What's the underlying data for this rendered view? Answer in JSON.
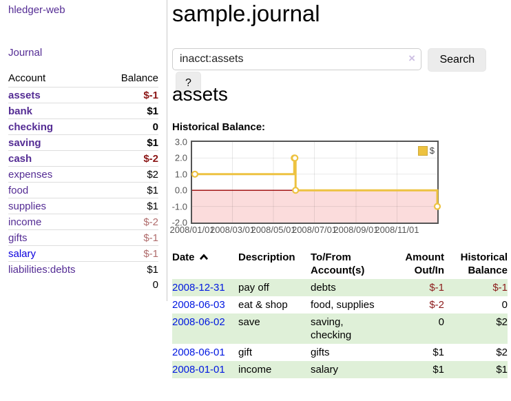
{
  "app": {
    "title": "hledger-web",
    "nav_journal": "Journal"
  },
  "sidebar": {
    "accounts_header": {
      "account": "Account",
      "balance": "Balance"
    },
    "accounts": [
      {
        "name": "assets",
        "balance": "$-1",
        "level": 1,
        "matched": true,
        "negative": true
      },
      {
        "name": "bank",
        "balance": "$1",
        "level": 2,
        "matched": true
      },
      {
        "name": "checking",
        "balance": "0",
        "level": 3,
        "matched": true
      },
      {
        "name": "saving",
        "balance": "$1",
        "level": 3,
        "matched": true
      },
      {
        "name": "cash",
        "balance": "$-2",
        "level": 2,
        "matched": true,
        "negative": true
      },
      {
        "name": "expenses",
        "balance": "$2",
        "level": 1
      },
      {
        "name": "food",
        "balance": "$1",
        "level": 2
      },
      {
        "name": "supplies",
        "balance": "$1",
        "level": 2
      },
      {
        "name": "income",
        "balance": "$-2",
        "level": 1,
        "negative": true
      },
      {
        "name": "gifts",
        "balance": "$-1",
        "level": 2,
        "negative": true
      },
      {
        "name": "salary",
        "balance": "$-1",
        "level": 2,
        "negative": true,
        "blue": true
      },
      {
        "name": "liabilities:debts",
        "balance": "$1",
        "level": 1
      }
    ],
    "total": "0"
  },
  "header": {
    "title": "sample.journal"
  },
  "search": {
    "value": "inacct:assets",
    "clear_icon": "×",
    "button": "Search",
    "help_button": "?"
  },
  "register": {
    "heading": "assets",
    "chart_title": "Historical Balance:"
  },
  "chart_data": {
    "type": "line",
    "step": true,
    "title": "Historical Balance of assets",
    "series": [
      {
        "name": "$",
        "color": "#edc240",
        "points": [
          {
            "x": "2008-01-01",
            "y": 1
          },
          {
            "x": "2008-06-01",
            "y": 2
          },
          {
            "x": "2008-06-02",
            "y": 2
          },
          {
            "x": "2008-06-03",
            "y": 0
          },
          {
            "x": "2008-12-31",
            "y": -1
          }
        ]
      }
    ],
    "x_ticks": [
      "2008/01/01",
      "2008/03/01",
      "2008/05/01",
      "2008/07/01",
      "2008/09/01",
      "2008/11/01"
    ],
    "y_ticks": [
      "3.0",
      "2.0",
      "1.0",
      "0.0",
      "-1.0",
      "-2.0"
    ],
    "ylim": [
      -2,
      3
    ],
    "grid": true,
    "legend": {
      "label": "$",
      "position": "top-right"
    },
    "negative_fill": "#fbdcdc",
    "zero_line_color": "#990000",
    "grid_color": "rgba(0,0,0,0.09)"
  },
  "table": {
    "headers": [
      "Date",
      "Description",
      "To/From Account(s)",
      "Amount Out/In",
      "Historical Balance"
    ],
    "rows": [
      {
        "date": "2008-12-31",
        "description": "pay off",
        "accounts": "debts",
        "amount": "$-1",
        "balance": "$-1",
        "amount_negative": true,
        "balance_negative": true,
        "shaded": true
      },
      {
        "date": "2008-06-03",
        "description": "eat & shop",
        "accounts": "food, supplies",
        "amount": "$-2",
        "balance": "0",
        "amount_negative": true
      },
      {
        "date": "2008-06-02",
        "description": "save",
        "accounts": "saving, checking",
        "amount": "0",
        "balance": "$2",
        "shaded": true
      },
      {
        "date": "2008-06-01",
        "description": "gift",
        "accounts": "gifts",
        "amount": "$1",
        "balance": "$2"
      },
      {
        "date": "2008-01-01",
        "description": "income",
        "accounts": "salary",
        "amount": "$1",
        "balance": "$1",
        "shaded": true
      }
    ]
  }
}
